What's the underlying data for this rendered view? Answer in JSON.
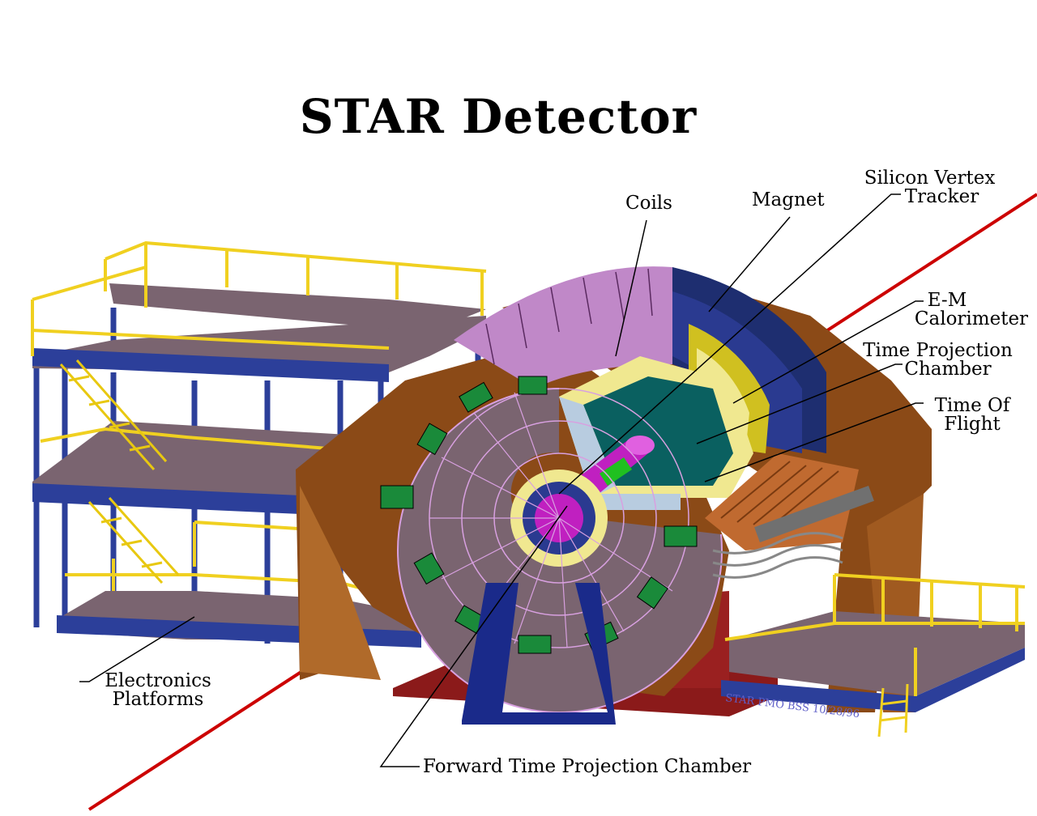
{
  "title": "STAR Detector",
  "labels": {
    "coils": "Coils",
    "magnet": "Magnet",
    "svt_line1": "Silicon Vertex",
    "svt_line2": "Tracker",
    "em_line1": "E-M",
    "em_line2": "Calorimeter",
    "tpc_line1": "Time Projection",
    "tpc_line2": "Chamber",
    "tof_line1": "Time Of",
    "tof_line2": "Flight",
    "elec_line1": "Electronics",
    "elec_line2": "Platforms",
    "ftpc": "Forward Time Projection Chamber"
  },
  "stamp": "STAR PMO BSS 10/28/96",
  "colors": {
    "beam": "#cc0000",
    "railing": "#f0d020",
    "platform_floor": "#7a6470",
    "platform_edge": "#2c3f9a",
    "magnet_iron": "#8b4a17",
    "calorimeter": "#c088c8",
    "tpc_gas": "#0a6060",
    "support": "#8b1a1a",
    "support_blue": "#1a2a8a"
  }
}
